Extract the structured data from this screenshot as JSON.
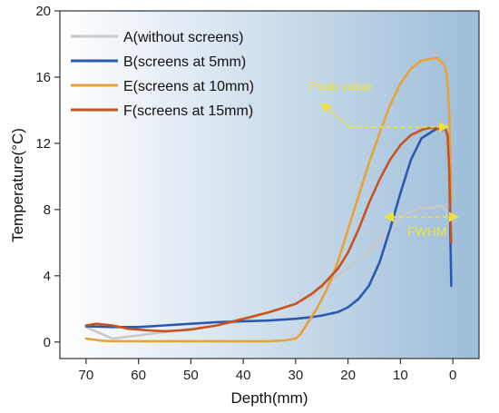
{
  "chart_data": {
    "type": "line",
    "xlabel": "Depth(mm)",
    "ylabel": "Temperature(°C)",
    "xlim": [
      75,
      -5
    ],
    "ylim": [
      -1,
      20
    ],
    "x_ticks": [
      70,
      60,
      50,
      40,
      30,
      20,
      10,
      0
    ],
    "y_ticks": [
      0,
      4,
      8,
      12,
      16,
      20
    ],
    "grid": false,
    "legend": "top-left",
    "background": {
      "from": "#ffffff",
      "to": "#9dbdd9"
    },
    "series": [
      {
        "name": "A(without screens)",
        "color": "#c8c8c8",
        "x": [
          70,
          65,
          60,
          55,
          50,
          45,
          40,
          35,
          30,
          27,
          25,
          22,
          20,
          17,
          15,
          12,
          10,
          8,
          6,
          4,
          3,
          2,
          1.5,
          1,
          0.6,
          0.3
        ],
        "y": [
          0.9,
          0.2,
          0.4,
          0.6,
          0.8,
          1.0,
          1.3,
          1.8,
          2.3,
          2.8,
          3.3,
          4.0,
          4.5,
          5.2,
          5.8,
          6.8,
          7.5,
          7.9,
          8.1,
          8.1,
          8.2,
          8.2,
          8.0,
          7.6,
          7.0,
          6.5
        ]
      },
      {
        "name": "B(screens at 5mm)",
        "color": "#2b58b2",
        "x": [
          70,
          65,
          60,
          55,
          50,
          45,
          40,
          35,
          30,
          27,
          25,
          22,
          20,
          18,
          16,
          14,
          12,
          10,
          8,
          6,
          4,
          3,
          2,
          1.5,
          1,
          0.7,
          0.5,
          0.3
        ],
        "y": [
          0.95,
          0.9,
          0.9,
          1.0,
          1.1,
          1.2,
          1.25,
          1.3,
          1.4,
          1.5,
          1.6,
          1.8,
          2.1,
          2.6,
          3.4,
          4.8,
          6.8,
          9.0,
          11.0,
          12.3,
          12.7,
          12.9,
          13.0,
          12.9,
          12.5,
          11.0,
          7.0,
          3.4
        ]
      },
      {
        "name": "E(screens at 10mm)",
        "color": "#e8a23a",
        "x": [
          70,
          67,
          65,
          60,
          55,
          50,
          45,
          40,
          35,
          32,
          30,
          29,
          28,
          26,
          24,
          22,
          20,
          18,
          16,
          14,
          12,
          10,
          8,
          6,
          4,
          3,
          2.5,
          2,
          1.5,
          1.2,
          1,
          0.7,
          0.5,
          0.3
        ],
        "y": [
          0.2,
          0.08,
          0.05,
          0.05,
          0.05,
          0.05,
          0.05,
          0.05,
          0.05,
          0.1,
          0.2,
          0.5,
          1.0,
          2.0,
          3.2,
          4.8,
          6.8,
          8.8,
          10.8,
          12.6,
          14.3,
          15.6,
          16.5,
          17.0,
          17.1,
          17.15,
          17.0,
          16.9,
          16.6,
          16.2,
          15.5,
          14.0,
          11.5,
          8.5
        ]
      },
      {
        "name": "F(screens at 15mm)",
        "color": "#c9531e",
        "x": [
          70,
          68,
          65,
          62,
          58,
          55,
          52,
          50,
          45,
          40,
          35,
          30,
          27,
          25,
          22,
          20,
          18,
          16,
          14,
          12,
          10,
          8,
          6,
          5,
          4,
          3,
          2,
          1.5,
          1,
          0.7,
          0.5,
          0.3
        ],
        "y": [
          1.0,
          1.1,
          1.0,
          0.8,
          0.7,
          0.65,
          0.7,
          0.75,
          1.0,
          1.4,
          1.8,
          2.3,
          2.9,
          3.4,
          4.4,
          5.4,
          6.8,
          8.4,
          9.8,
          11.0,
          11.9,
          12.5,
          12.8,
          12.9,
          12.95,
          12.9,
          12.8,
          13.0,
          12.4,
          10.5,
          8.0,
          6.0
        ]
      }
    ],
    "annotations": [
      {
        "text": "Peak value",
        "color": "#f0e23a"
      },
      {
        "text": "FWHM",
        "color": "#f0e23a"
      }
    ]
  }
}
